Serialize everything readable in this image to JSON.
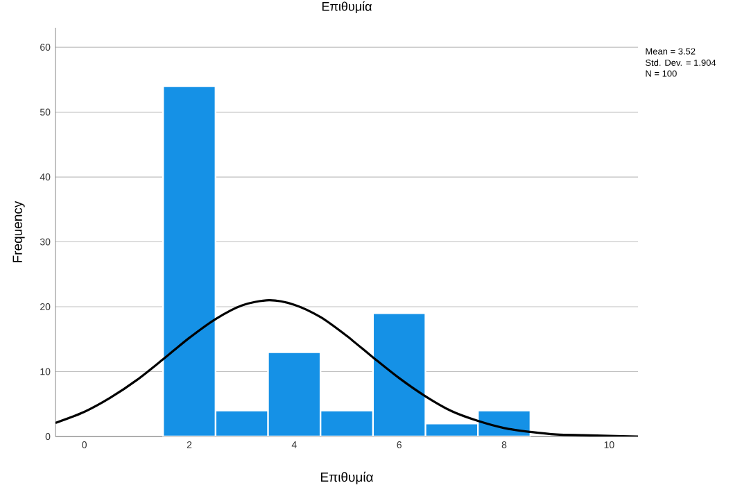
{
  "chart_data": {
    "type": "histogram",
    "title": "Επιθυμία",
    "xlabel": "Επιθυμία",
    "ylabel": "Frequency",
    "bins": [
      1.5,
      2.5,
      3.5,
      4.5,
      5.5,
      6.5,
      7.5,
      8.5
    ],
    "values": [
      54,
      4,
      13,
      4,
      19,
      2,
      4
    ],
    "color": "#1591e6",
    "series": [
      {
        "type": "line",
        "color": "#000000",
        "x": [
          -0.55,
          0,
          0.5,
          1,
          1.5,
          2,
          2.5,
          3,
          3.52,
          4,
          4.5,
          5,
          5.5,
          6,
          6.5,
          7,
          7.5,
          8,
          8.5,
          9,
          9.5,
          10,
          10.55
        ],
        "values": [
          2.1,
          3.8,
          6.0,
          8.7,
          11.9,
          15.2,
          18.1,
          20.2,
          21.0,
          20.3,
          18.4,
          15.5,
          12.2,
          9.0,
          6.2,
          3.9,
          2.4,
          1.3,
          0.7,
          0.3,
          0.2,
          0.1,
          0.0
        ]
      }
    ],
    "annotations": [
      "Mean = 3.52",
      "Std. Dev. = 1.904",
      "N = 100"
    ],
    "xlim": [
      -0.55,
      10.55
    ],
    "ylim": [
      0,
      63
    ],
    "xticks": [
      0,
      2,
      4,
      6,
      8,
      10
    ],
    "yticks": [
      0,
      10,
      20,
      30,
      40,
      50,
      60
    ],
    "grid": "y",
    "line_style": "solid"
  }
}
